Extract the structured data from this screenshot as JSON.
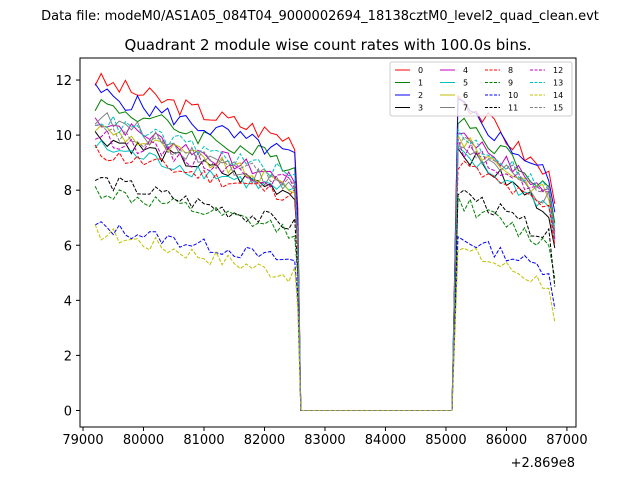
{
  "chart_data": {
    "type": "line",
    "suptitle": "Data file: modeM0/AS1A05_084T04_9000002694_18138cztM0_level2_quad_clean.evt",
    "title": "Quadrant 2 module wise count rates with 100.0s bins.",
    "xlabel": "",
    "ylabel": "",
    "x_offset_label": "+2.869e8",
    "xlim": [
      78950,
      87150
    ],
    "ylim": [
      -0.6,
      12.8
    ],
    "xticks": [
      79000,
      80000,
      81000,
      82000,
      83000,
      84000,
      85000,
      86000,
      87000
    ],
    "xtick_labels": [
      "79000",
      "80000",
      "81000",
      "82000",
      "83000",
      "84000",
      "85000",
      "86000",
      "87000"
    ],
    "yticks": [
      0,
      2,
      4,
      6,
      8,
      10,
      12
    ],
    "ytick_labels": [
      "0",
      "2",
      "4",
      "6",
      "8",
      "10",
      "12"
    ],
    "legend_location": "upper right",
    "legend_columns": 4,
    "x_start": 79200,
    "x_step": 100,
    "gap_start": 82600,
    "gap_end": 85100,
    "after_start": 85200,
    "after_end": 86800,
    "series": [
      {
        "name": "0",
        "color": "#ff0000",
        "dash": "solid",
        "start_before": 12.0,
        "end_before": 9.8,
        "start_after": 11.5,
        "end_after": 8.5,
        "last": 7.5,
        "noise": 0.35
      },
      {
        "name": "1",
        "color": "#008000",
        "dash": "solid",
        "start_before": 11.2,
        "end_before": 8.9,
        "start_after": 10.7,
        "end_after": 8.1,
        "last": 6.8,
        "noise": 0.35
      },
      {
        "name": "2",
        "color": "#0000ff",
        "dash": "solid",
        "start_before": 11.6,
        "end_before": 9.2,
        "start_after": 11.1,
        "end_after": 8.5,
        "last": 7.2,
        "noise": 0.35
      },
      {
        "name": "3",
        "color": "#000000",
        "dash": "solid",
        "start_before": 10.0,
        "end_before": 7.9,
        "start_after": 9.5,
        "end_after": 7.3,
        "last": 5.9,
        "noise": 0.3
      },
      {
        "name": "4",
        "color": "#c000c0",
        "dash": "solid",
        "start_before": 10.6,
        "end_before": 8.3,
        "start_after": 10.2,
        "end_after": 7.9,
        "last": 6.5,
        "noise": 0.3
      },
      {
        "name": "5",
        "color": "#00c0c0",
        "dash": "solid",
        "start_before": 9.6,
        "end_before": 7.9,
        "start_after": 9.3,
        "end_after": 7.4,
        "last": 6.3,
        "noise": 0.3
      },
      {
        "name": "6",
        "color": "#c0c000",
        "dash": "solid",
        "start_before": 10.3,
        "end_before": 8.1,
        "start_after": 9.9,
        "end_after": 7.8,
        "last": 6.6,
        "noise": 0.3
      },
      {
        "name": "7",
        "color": "#808080",
        "dash": "solid",
        "start_before": 10.7,
        "end_before": 8.0,
        "start_after": 9.7,
        "end_after": 7.6,
        "last": 6.4,
        "noise": 0.35
      },
      {
        "name": "8",
        "color": "#ff0000",
        "dash": "dashed",
        "start_before": 9.4,
        "end_before": 7.8,
        "start_after": 9.0,
        "end_after": 7.3,
        "last": 6.0,
        "noise": 0.3
      },
      {
        "name": "9",
        "color": "#008000",
        "dash": "dashed",
        "start_before": 8.0,
        "end_before": 6.5,
        "start_after": 7.6,
        "end_after": 6.0,
        "last": 4.8,
        "noise": 0.3
      },
      {
        "name": "10",
        "color": "#0000ff",
        "dash": "dashed",
        "start_before": 6.7,
        "end_before": 5.4,
        "start_after": 6.3,
        "end_after": 5.1,
        "last": 3.7,
        "noise": 0.25
      },
      {
        "name": "11",
        "color": "#000000",
        "dash": "dashed",
        "start_before": 8.4,
        "end_before": 6.7,
        "start_after": 8.0,
        "end_after": 6.3,
        "last": 4.5,
        "noise": 0.3
      },
      {
        "name": "12",
        "color": "#c000c0",
        "dash": "dashed",
        "start_before": 10.0,
        "end_before": 8.2,
        "start_after": 9.6,
        "end_after": 7.8,
        "last": 6.2,
        "noise": 0.3
      },
      {
        "name": "13",
        "color": "#00c0c0",
        "dash": "dashed",
        "start_before": 10.6,
        "end_before": 8.5,
        "start_after": 10.1,
        "end_after": 8.0,
        "last": 6.6,
        "noise": 0.3
      },
      {
        "name": "14",
        "color": "#c0c000",
        "dash": "dashed",
        "start_before": 6.5,
        "end_before": 4.9,
        "start_after": 5.9,
        "end_after": 4.6,
        "last": 3.2,
        "noise": 0.3
      },
      {
        "name": "15",
        "color": "#808080",
        "dash": "dashed",
        "start_before": 10.2,
        "end_before": 8.3,
        "start_after": 9.8,
        "end_after": 7.9,
        "last": 6.3,
        "noise": 0.3
      }
    ]
  }
}
